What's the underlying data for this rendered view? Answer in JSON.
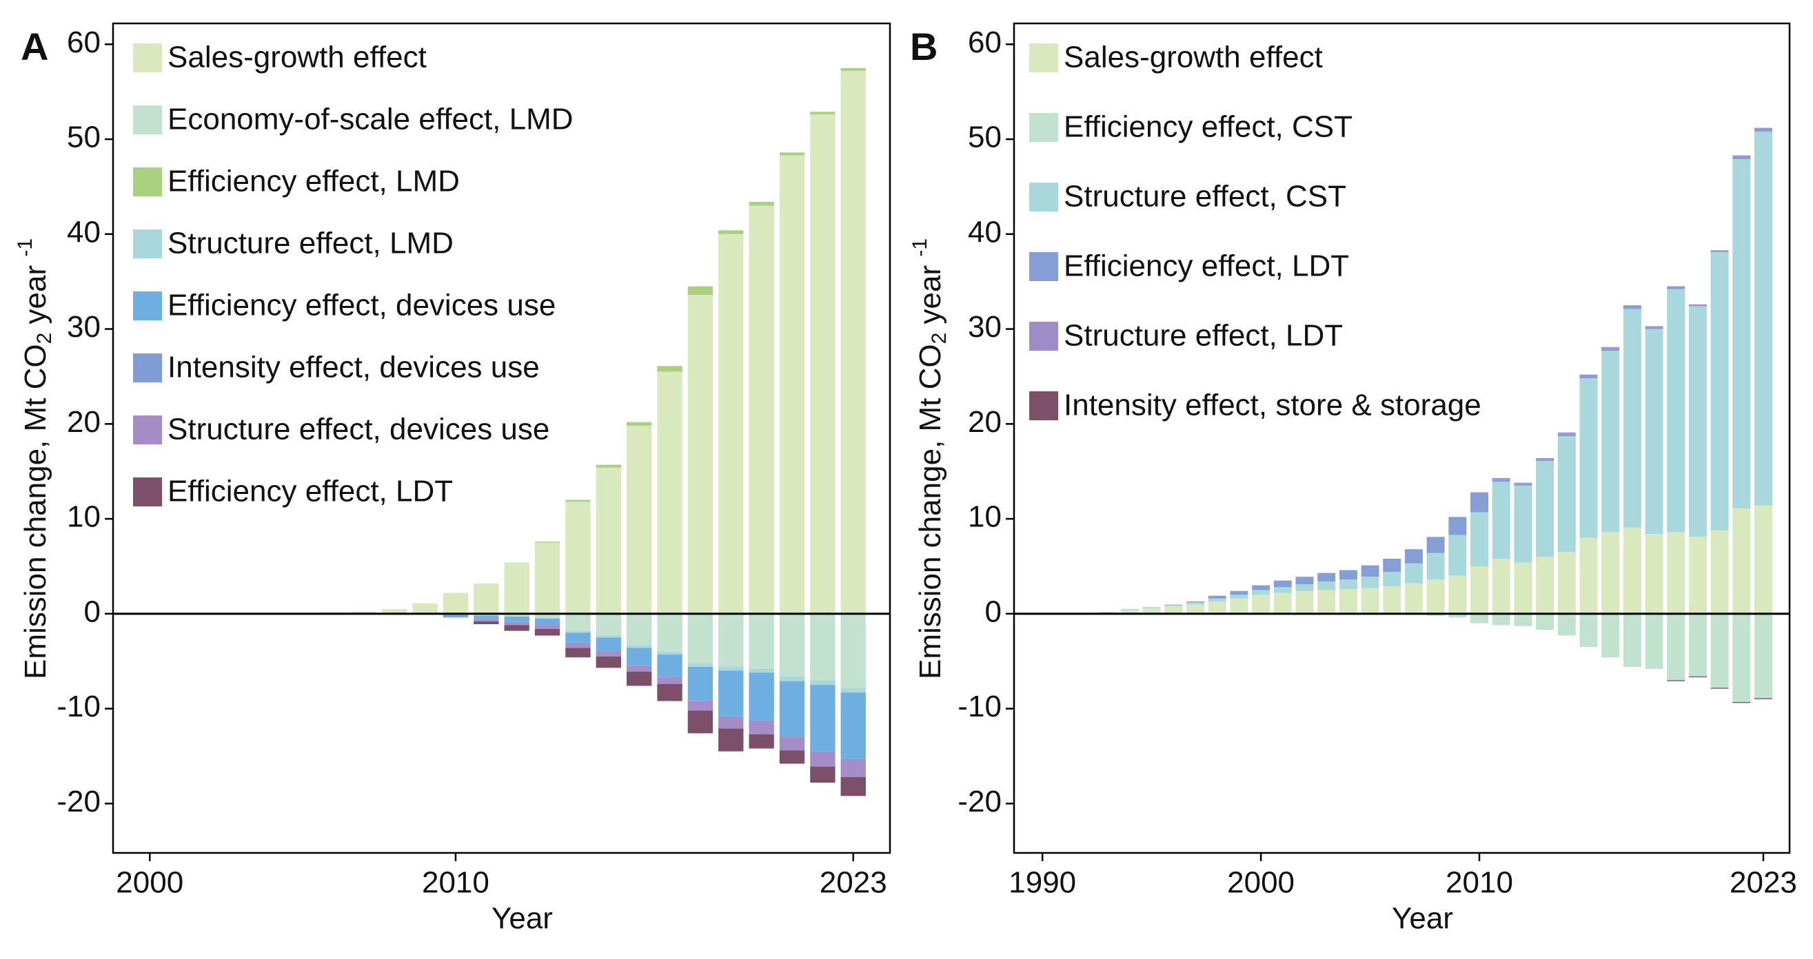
{
  "chart_data": [
    {
      "panel_label": "A",
      "type": "bar",
      "stacked": true,
      "x": [
        2000,
        2001,
        2002,
        2003,
        2004,
        2005,
        2006,
        2007,
        2008,
        2009,
        2010,
        2011,
        2012,
        2013,
        2014,
        2015,
        2016,
        2017,
        2018,
        2019,
        2020,
        2021,
        2022,
        2023
      ],
      "xlim": [
        1998.8,
        2024.2
      ],
      "xticks": [
        2000,
        2010,
        2023
      ],
      "xlabel": "Year",
      "ylim": [
        -25.2,
        62.2
      ],
      "yticks": [
        -20,
        -10,
        0,
        10,
        20,
        30,
        40,
        50,
        60
      ],
      "ylabel": [
        "Emission change, Mt CO",
        "2",
        " year ",
        "-1"
      ],
      "series": [
        {
          "name": "Sales-growth effect",
          "color": "#d9e8bd",
          "values": [
            0,
            0,
            0,
            0,
            0.05,
            0.1,
            0.15,
            0.25,
            0.5,
            1.1,
            2.2,
            3.2,
            5.4,
            7.5,
            11.8,
            15.4,
            19.8,
            25.5,
            33.6,
            40,
            43,
            48.3,
            52.6,
            57.2
          ]
        },
        {
          "name": "Economy-of-scale effect, LMD",
          "color": "#c3e1cf",
          "values": [
            0,
            0,
            0,
            0,
            0,
            0,
            0,
            0,
            0,
            0,
            -0.1,
            -0.2,
            -0.3,
            -0.5,
            -1.8,
            -2.3,
            -3.3,
            -4.0,
            -5.2,
            -5.6,
            -5.8,
            -6.6,
            -7.0,
            -7.8
          ]
        },
        {
          "name": "Efficiency effect, LMD",
          "color": "#a9d17f",
          "values": [
            0,
            0,
            0,
            0,
            0,
            0,
            0,
            0,
            0,
            0,
            0,
            0,
            0,
            0.1,
            0.2,
            0.3,
            0.4,
            0.6,
            0.9,
            0.4,
            0.4,
            0.3,
            0.3,
            0.3
          ]
        },
        {
          "name": "Structure effect, LMD",
          "color": "#a9d7dc",
          "values": [
            0,
            0,
            0,
            0,
            0,
            0,
            0,
            0,
            0,
            0,
            0,
            0,
            0,
            0,
            -0.2,
            -0.2,
            -0.3,
            -0.3,
            -0.4,
            -0.4,
            -0.4,
            -0.5,
            -0.5,
            -0.5
          ]
        },
        {
          "name": "Efficiency effect, devices use",
          "color": "#6eaee0",
          "values": [
            0,
            0,
            0,
            0,
            0,
            0,
            0,
            0,
            0,
            0,
            -0.2,
            -0.3,
            -0.5,
            -0.6,
            -1.0,
            -1.4,
            -1.8,
            -2.3,
            -3.5,
            -4.8,
            -5.0,
            -5.8,
            -7.0,
            -7.0
          ]
        },
        {
          "name": "Intensity effect, devices use",
          "color": "#7f9ed6",
          "values": [
            0,
            0,
            0,
            0,
            0,
            0,
            0,
            0,
            0,
            0,
            -0.1,
            -0.1,
            -0.1,
            -0.1,
            -0.1,
            -0.1,
            -0.1,
            -0.1,
            -0.1,
            -0.1,
            -0.1,
            -0.1,
            -0.1,
            -0.1
          ]
        },
        {
          "name": "Structure effect, devices use",
          "color": "#a58ec8",
          "values": [
            0,
            0,
            0,
            0,
            0,
            0,
            0,
            0,
            0,
            0,
            0,
            -0.2,
            -0.3,
            -0.4,
            -0.5,
            -0.5,
            -0.6,
            -0.7,
            -1.0,
            -1.2,
            -1.4,
            -1.4,
            -1.5,
            -1.8
          ]
        },
        {
          "name": "Efficiency effect, LDT",
          "color": "#7c5068",
          "values": [
            0,
            0,
            0,
            0,
            0,
            0,
            0,
            0,
            0,
            0,
            0,
            -0.3,
            -0.6,
            -0.7,
            -1.0,
            -1.2,
            -1.5,
            -1.8,
            -2.4,
            -2.4,
            -1.5,
            -1.4,
            -1.7,
            -2.0
          ]
        }
      ]
    },
    {
      "panel_label": "B",
      "type": "bar",
      "stacked": true,
      "x": [
        1990,
        1991,
        1992,
        1993,
        1994,
        1995,
        1996,
        1997,
        1998,
        1999,
        2000,
        2001,
        2002,
        2003,
        2004,
        2005,
        2006,
        2007,
        2008,
        2009,
        2010,
        2011,
        2012,
        2013,
        2014,
        2015,
        2016,
        2017,
        2018,
        2019,
        2020,
        2021,
        2022,
        2023
      ],
      "xlim": [
        1988.7,
        2024.2
      ],
      "xticks": [
        1990,
        2000,
        2010,
        2023
      ],
      "xlabel": "Year",
      "ylim": [
        -25.2,
        62.2
      ],
      "yticks": [
        -20,
        -10,
        0,
        10,
        20,
        30,
        40,
        50,
        60
      ],
      "ylabel": [
        "Emission change, Mt CO",
        "2",
        " year ",
        "-1"
      ],
      "series": [
        {
          "name": "Sales-growth effect",
          "color": "#d9e8bd",
          "values": [
            0,
            0.05,
            0.1,
            0.2,
            0.4,
            0.6,
            0.8,
            1.0,
            1.3,
            1.6,
            2.0,
            2.2,
            2.4,
            2.5,
            2.6,
            2.7,
            2.9,
            3.2,
            3.6,
            4.0,
            5.0,
            5.8,
            5.4,
            6.0,
            6.5,
            8.0,
            8.6,
            9.1,
            8.4,
            8.6,
            8.1,
            8.8,
            11.1,
            11.4
          ]
        },
        {
          "name": "Efficiency effect, CST",
          "color": "#c0e2cf",
          "values": [
            0,
            0,
            0,
            0,
            0,
            0,
            0,
            0,
            0,
            0,
            0,
            0,
            0,
            0,
            0,
            0,
            0,
            -0.1,
            -0.2,
            -0.4,
            -1.0,
            -1.2,
            -1.3,
            -1.7,
            -2.3,
            -3.5,
            -4.6,
            -5.6,
            -5.8,
            -7.0,
            -6.6,
            -7.8,
            -9.3,
            -8.9
          ]
        },
        {
          "name": "Structure effect, CST",
          "color": "#a8d8dc",
          "values": [
            0,
            0,
            0,
            0,
            0.1,
            0.1,
            0.2,
            0.2,
            0.3,
            0.4,
            0.5,
            0.6,
            0.7,
            0.9,
            1.0,
            1.2,
            1.5,
            2.1,
            2.8,
            4.3,
            5.7,
            8.1,
            8.1,
            10.1,
            12.2,
            16.8,
            19.1,
            23.0,
            21.6,
            25.6,
            24.3,
            29.3,
            36.8,
            39.4
          ]
        },
        {
          "name": "Efficiency effect, LDT",
          "color": "#859fd6",
          "values": [
            0,
            0,
            0,
            0,
            0,
            0,
            0,
            0.1,
            0.3,
            0.4,
            0.5,
            0.7,
            0.8,
            0.9,
            1.0,
            1.2,
            1.4,
            1.5,
            1.7,
            1.9,
            2.0,
            0.3,
            0.2,
            0.2,
            0.3,
            0.3,
            0.3,
            0.3,
            0.2,
            0.2,
            0.1,
            0.1,
            0.3,
            0.3
          ]
        },
        {
          "name": "Structure effect, LDT",
          "color": "#9e8cc8",
          "values": [
            0,
            0,
            0,
            0,
            0,
            0,
            0,
            0,
            0,
            0,
            0,
            0,
            0,
            0,
            0,
            0,
            0,
            0,
            0,
            0,
            0.1,
            0.1,
            0.1,
            0.1,
            0.1,
            0.1,
            0.1,
            0.1,
            0.1,
            0.1,
            0.1,
            0.1,
            0.1,
            0.1
          ]
        },
        {
          "name": "Intensity effect, store & storage",
          "color": "#7c5068",
          "values": [
            0,
            0,
            0,
            0,
            0,
            0,
            0,
            0,
            0,
            0,
            0,
            0,
            0,
            0,
            0,
            0,
            0,
            0,
            0,
            0,
            0,
            0,
            0,
            0,
            0,
            0,
            0,
            0,
            0,
            -0.1,
            -0.1,
            -0.1,
            -0.1,
            -0.1
          ]
        }
      ]
    }
  ]
}
